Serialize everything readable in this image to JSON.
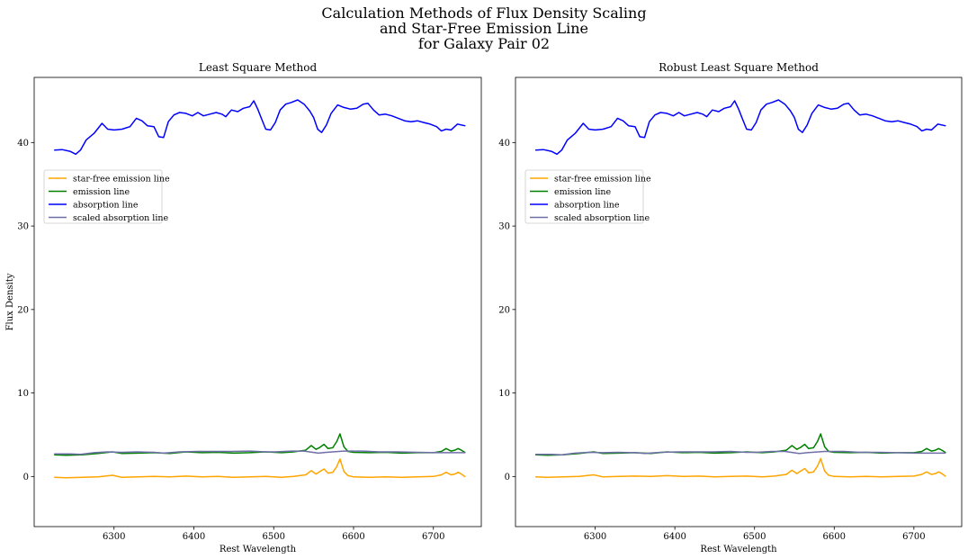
{
  "figure": {
    "title_lines": [
      "Calculation Methods of Flux Density Scaling",
      "and Star-Free Emission Line",
      "for Galaxy Pair 02"
    ]
  },
  "colors": {
    "star_free": "#ffa500",
    "emission": "#008000",
    "absorption": "#0000ff",
    "scaled": "#6f6fa8"
  },
  "chart_data": [
    {
      "type": "line",
      "title": "Least Square Method",
      "xlabel": "Rest Wavelength",
      "ylabel": "Flux Density",
      "xlim": [
        6200,
        6760
      ],
      "ylim": [
        -6,
        47.8
      ],
      "xticks": [
        6300,
        6400,
        6500,
        6600,
        6700
      ],
      "yticks": [
        0,
        10,
        20,
        30,
        40
      ],
      "legend_position": "center-left",
      "series": [
        {
          "name": "star-free emission line",
          "color": "#ffa500",
          "style": "star_free",
          "x": [
            6225,
            6240,
            6260,
            6280,
            6298,
            6310,
            6330,
            6350,
            6370,
            6390,
            6410,
            6430,
            6450,
            6470,
            6490,
            6510,
            6525,
            6540,
            6547,
            6553,
            6558,
            6563,
            6568,
            6574,
            6579,
            6583,
            6588,
            6593,
            6600,
            6620,
            6640,
            6660,
            6680,
            6700,
            6710,
            6716,
            6722,
            6727,
            6731,
            6735,
            6740
          ],
          "y": [
            -0.1,
            -0.15,
            -0.1,
            -0.05,
            0.15,
            -0.1,
            -0.05,
            0.0,
            -0.05,
            0.05,
            -0.05,
            0.0,
            -0.1,
            -0.05,
            0.0,
            -0.1,
            0.0,
            0.2,
            0.7,
            0.3,
            0.6,
            0.9,
            0.4,
            0.5,
            1.2,
            2.1,
            0.6,
            0.1,
            -0.05,
            -0.1,
            -0.05,
            -0.1,
            -0.05,
            0.0,
            0.2,
            0.5,
            0.2,
            0.3,
            0.5,
            0.3,
            -0.05
          ]
        },
        {
          "name": "emission line",
          "color": "#008000",
          "style": "emission",
          "x": [
            6225,
            6240,
            6260,
            6280,
            6298,
            6310,
            6330,
            6350,
            6370,
            6390,
            6410,
            6430,
            6450,
            6470,
            6490,
            6510,
            6525,
            6540,
            6547,
            6553,
            6558,
            6563,
            6568,
            6574,
            6579,
            6583,
            6588,
            6593,
            6600,
            6620,
            6640,
            6660,
            6680,
            6700,
            6710,
            6716,
            6722,
            6727,
            6731,
            6735,
            6740
          ],
          "y": [
            2.6,
            2.55,
            2.6,
            2.75,
            2.95,
            2.75,
            2.8,
            2.85,
            2.75,
            2.95,
            2.85,
            2.9,
            2.8,
            2.85,
            2.95,
            2.85,
            2.95,
            3.15,
            3.7,
            3.25,
            3.5,
            3.85,
            3.35,
            3.45,
            4.2,
            5.1,
            3.55,
            3.0,
            2.9,
            2.85,
            2.9,
            2.8,
            2.85,
            2.85,
            3.0,
            3.35,
            3.05,
            3.15,
            3.35,
            3.15,
            2.85
          ]
        },
        {
          "name": "absorption line",
          "color": "#0000ff",
          "style": "absorption",
          "x": [
            6225,
            6235,
            6245,
            6252,
            6258,
            6265,
            6275,
            6285,
            6292,
            6300,
            6310,
            6320,
            6328,
            6335,
            6342,
            6350,
            6356,
            6362,
            6368,
            6375,
            6382,
            6390,
            6398,
            6405,
            6412,
            6420,
            6428,
            6435,
            6440,
            6447,
            6455,
            6462,
            6470,
            6475,
            6480,
            6485,
            6490,
            6496,
            6502,
            6508,
            6515,
            6522,
            6530,
            6538,
            6545,
            6550,
            6555,
            6560,
            6566,
            6572,
            6580,
            6588,
            6596,
            6604,
            6612,
            6618,
            6625,
            6632,
            6640,
            6648,
            6656,
            6664,
            6672,
            6680,
            6688,
            6696,
            6704,
            6710,
            6716,
            6722,
            6730,
            6740
          ],
          "y": [
            39.1,
            39.15,
            38.95,
            38.6,
            39.1,
            40.3,
            41.1,
            42.3,
            41.6,
            41.5,
            41.6,
            41.9,
            42.9,
            42.6,
            42.0,
            41.9,
            40.7,
            40.6,
            42.5,
            43.3,
            43.6,
            43.5,
            43.2,
            43.6,
            43.2,
            43.4,
            43.6,
            43.4,
            43.1,
            43.9,
            43.7,
            44.1,
            44.3,
            45.0,
            44.0,
            42.8,
            41.6,
            41.5,
            42.4,
            43.9,
            44.6,
            44.8,
            45.1,
            44.6,
            43.8,
            43.0,
            41.6,
            41.2,
            42.1,
            43.5,
            44.5,
            44.2,
            44.0,
            44.1,
            44.6,
            44.7,
            43.9,
            43.3,
            43.4,
            43.2,
            42.9,
            42.6,
            42.5,
            42.6,
            42.4,
            42.2,
            41.9,
            41.4,
            41.6,
            41.5,
            42.2,
            42.0
          ]
        },
        {
          "name": "scaled absorption line",
          "color": "#6f6fa8",
          "style": "scaled",
          "x": [
            6225,
            6245,
            6258,
            6275,
            6292,
            6310,
            6328,
            6350,
            6362,
            6382,
            6405,
            6428,
            6447,
            6470,
            6490,
            6502,
            6522,
            6538,
            6556,
            6566,
            6588,
            6612,
            6632,
            6656,
            6680,
            6704,
            6716,
            6740
          ],
          "y": [
            2.7,
            2.7,
            2.65,
            2.85,
            2.95,
            2.9,
            2.95,
            2.9,
            2.8,
            2.95,
            3.0,
            3.0,
            3.0,
            3.05,
            2.95,
            2.95,
            3.05,
            3.05,
            2.8,
            2.9,
            3.05,
            3.05,
            2.95,
            2.95,
            2.9,
            2.85,
            2.85,
            2.85
          ]
        }
      ]
    },
    {
      "type": "line",
      "title": "Robust Least Square Method",
      "xlabel": "Rest Wavelength",
      "ylabel": "",
      "xlim": [
        6200,
        6760
      ],
      "ylim": [
        -6,
        47.8
      ],
      "xticks": [
        6300,
        6400,
        6500,
        6600,
        6700
      ],
      "yticks": [
        0,
        10,
        20,
        30,
        40
      ],
      "legend_position": "center-left",
      "series": [
        {
          "name": "star-free emission line",
          "color": "#ffa500",
          "style": "star_free",
          "x": [
            6225,
            6240,
            6260,
            6280,
            6298,
            6310,
            6330,
            6350,
            6370,
            6390,
            6410,
            6430,
            6450,
            6470,
            6490,
            6510,
            6525,
            6540,
            6547,
            6553,
            6558,
            6563,
            6568,
            6574,
            6579,
            6583,
            6588,
            6593,
            6600,
            6620,
            6640,
            6660,
            6680,
            6700,
            6710,
            6716,
            6722,
            6727,
            6731,
            6735,
            6740
          ],
          "y": [
            -0.05,
            -0.1,
            -0.05,
            0.0,
            0.2,
            -0.05,
            0.0,
            0.05,
            0.0,
            0.1,
            0.0,
            0.05,
            -0.05,
            0.0,
            0.05,
            -0.05,
            0.05,
            0.25,
            0.75,
            0.35,
            0.65,
            0.95,
            0.45,
            0.55,
            1.25,
            2.15,
            0.65,
            0.15,
            0.0,
            -0.05,
            0.0,
            -0.05,
            0.0,
            0.05,
            0.25,
            0.55,
            0.25,
            0.35,
            0.55,
            0.35,
            0.0
          ]
        },
        {
          "name": "emission line",
          "color": "#008000",
          "style": "emission",
          "x": [
            6225,
            6240,
            6260,
            6280,
            6298,
            6310,
            6330,
            6350,
            6370,
            6390,
            6410,
            6430,
            6450,
            6470,
            6490,
            6510,
            6525,
            6540,
            6547,
            6553,
            6558,
            6563,
            6568,
            6574,
            6579,
            6583,
            6588,
            6593,
            6600,
            6620,
            6640,
            6660,
            6680,
            6700,
            6710,
            6716,
            6722,
            6727,
            6731,
            6735,
            6740
          ],
          "y": [
            2.6,
            2.55,
            2.6,
            2.75,
            2.95,
            2.75,
            2.8,
            2.85,
            2.75,
            2.95,
            2.85,
            2.9,
            2.8,
            2.85,
            2.95,
            2.85,
            2.95,
            3.15,
            3.7,
            3.25,
            3.5,
            3.85,
            3.35,
            3.45,
            4.2,
            5.1,
            3.55,
            3.0,
            2.9,
            2.85,
            2.9,
            2.8,
            2.85,
            2.85,
            3.0,
            3.35,
            3.05,
            3.15,
            3.35,
            3.15,
            2.85
          ]
        },
        {
          "name": "absorption line",
          "color": "#0000ff",
          "style": "absorption",
          "x": [
            6225,
            6235,
            6245,
            6252,
            6258,
            6265,
            6275,
            6285,
            6292,
            6300,
            6310,
            6320,
            6328,
            6335,
            6342,
            6350,
            6356,
            6362,
            6368,
            6375,
            6382,
            6390,
            6398,
            6405,
            6412,
            6420,
            6428,
            6435,
            6440,
            6447,
            6455,
            6462,
            6470,
            6475,
            6480,
            6485,
            6490,
            6496,
            6502,
            6508,
            6515,
            6522,
            6530,
            6538,
            6545,
            6550,
            6555,
            6560,
            6566,
            6572,
            6580,
            6588,
            6596,
            6604,
            6612,
            6618,
            6625,
            6632,
            6640,
            6648,
            6656,
            6664,
            6672,
            6680,
            6688,
            6696,
            6704,
            6710,
            6716,
            6722,
            6730,
            6740
          ],
          "y": [
            39.1,
            39.15,
            38.95,
            38.6,
            39.1,
            40.3,
            41.1,
            42.3,
            41.6,
            41.5,
            41.6,
            41.9,
            42.9,
            42.6,
            42.0,
            41.9,
            40.7,
            40.6,
            42.5,
            43.3,
            43.6,
            43.5,
            43.2,
            43.6,
            43.2,
            43.4,
            43.6,
            43.4,
            43.1,
            43.9,
            43.7,
            44.1,
            44.3,
            45.0,
            44.0,
            42.8,
            41.6,
            41.5,
            42.4,
            43.9,
            44.6,
            44.8,
            45.1,
            44.6,
            43.8,
            43.0,
            41.6,
            41.2,
            42.1,
            43.5,
            44.5,
            44.2,
            44.0,
            44.1,
            44.6,
            44.7,
            43.9,
            43.3,
            43.4,
            43.2,
            42.9,
            42.6,
            42.5,
            42.6,
            42.4,
            42.2,
            41.9,
            41.4,
            41.6,
            41.5,
            42.2,
            42.0
          ]
        },
        {
          "name": "scaled absorption line",
          "color": "#6f6fa8",
          "style": "scaled",
          "x": [
            6225,
            6245,
            6258,
            6275,
            6292,
            6310,
            6328,
            6350,
            6362,
            6382,
            6405,
            6428,
            6447,
            6470,
            6490,
            6502,
            6522,
            6538,
            6556,
            6566,
            6588,
            6612,
            6632,
            6656,
            6680,
            6704,
            6716,
            6740
          ],
          "y": [
            2.65,
            2.65,
            2.6,
            2.8,
            2.9,
            2.85,
            2.9,
            2.85,
            2.75,
            2.9,
            2.95,
            2.95,
            2.95,
            3.0,
            2.9,
            2.9,
            3.0,
            3.0,
            2.75,
            2.85,
            3.0,
            3.0,
            2.9,
            2.9,
            2.85,
            2.8,
            2.8,
            2.8
          ]
        }
      ]
    }
  ]
}
